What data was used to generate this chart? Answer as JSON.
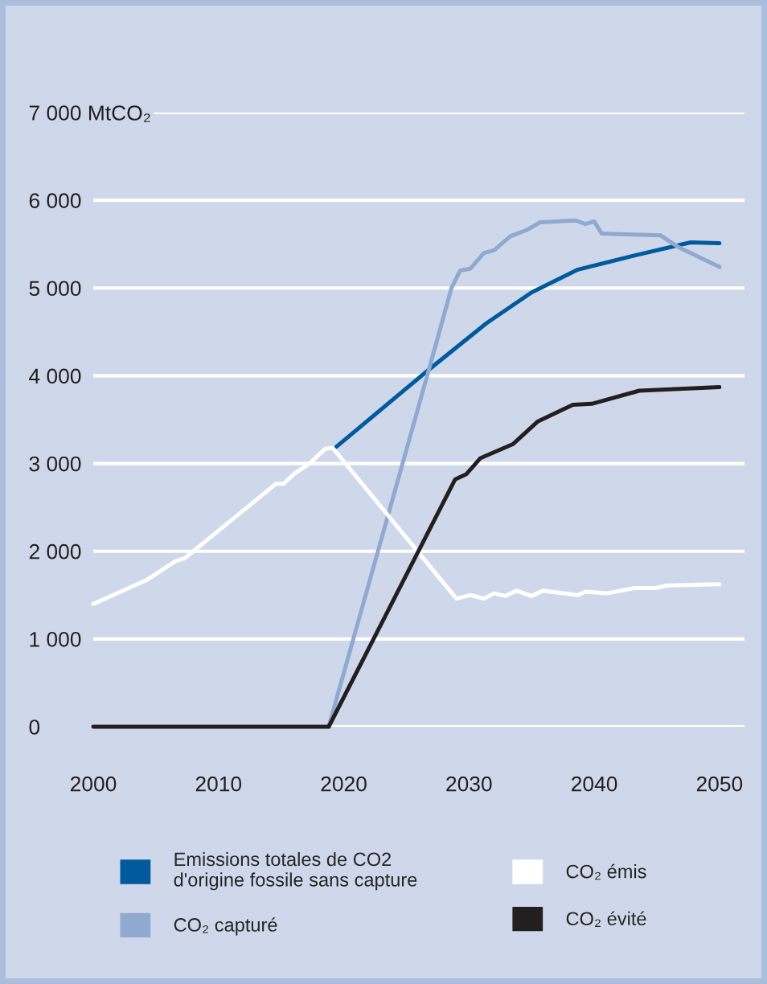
{
  "chart_data": {
    "type": "line",
    "xlim": [
      2000,
      2052
    ],
    "xticks": [
      2000,
      2010,
      2020,
      2030,
      2040,
      2050
    ],
    "ylim": [
      0,
      7000
    ],
    "yticks": [
      0,
      {
        "value": 1000,
        "label": "1 000"
      },
      {
        "value": 2000,
        "label": "2 000"
      },
      {
        "value": 3000,
        "label": "3 000"
      },
      {
        "value": 4000,
        "label": "4 000"
      },
      {
        "value": 5000,
        "label": "5 000"
      },
      {
        "value": 6000,
        "label": "6 000"
      },
      {
        "value": 7000,
        "label": "7 000 MtCO₂"
      }
    ],
    "grid": "y",
    "legend": "bottom",
    "series": [
      {
        "name": "Emissions totales de CO2\nd'origine fossile sans capture",
        "color": "#005a9c",
        "x": [
          2019.4,
          2026.8,
          2031.4,
          2035,
          2038.7,
          2043.2,
          2047.7,
          2050
        ],
        "values": [
          3190,
          4070,
          4600,
          4950,
          5210,
          5370,
          5520,
          5510
        ]
      },
      {
        "name": "CO₂ capturé",
        "color": "#8fa9d0",
        "x": [
          2018.8,
          2026.8,
          2028.6,
          2029.3,
          2030.1,
          2031.2,
          2032,
          2033.3,
          2034.6,
          2035.7,
          2038.5,
          2039.3,
          2040,
          2040.6,
          2045.3,
          2046.8,
          2050
        ],
        "values": [
          0,
          4070,
          5000,
          5200,
          5220,
          5400,
          5430,
          5590,
          5660,
          5750,
          5770,
          5730,
          5760,
          5620,
          5600,
          5460,
          5240
        ]
      },
      {
        "name": "CO₂ émis",
        "color": "#ffffff",
        "x": [
          2000,
          2004.3,
          2006.6,
          2007.3,
          2014.6,
          2015.2,
          2016.1,
          2017.2,
          2018.5,
          2019.1,
          2029,
          2030.1,
          2031.2,
          2032,
          2032.9,
          2033.8,
          2035,
          2035.9,
          2038.7,
          2039.3,
          2041,
          2043.2,
          2044.9,
          2045.8,
          2050
        ],
        "values": [
          1400,
          1675,
          1890,
          1920,
          2770,
          2770,
          2890,
          2990,
          3165,
          3180,
          1460,
          1500,
          1460,
          1520,
          1490,
          1550,
          1490,
          1550,
          1500,
          1540,
          1520,
          1580,
          1580,
          1610,
          1625
        ]
      },
      {
        "name": "CO₂ évité",
        "color": "#231f20",
        "x": [
          2000,
          2018.8,
          2028.9,
          2029.8,
          2030.9,
          2033.5,
          2035.5,
          2038.3,
          2039.8,
          2043.6,
          2050
        ],
        "values": [
          0,
          0,
          2820,
          2880,
          3060,
          3220,
          3480,
          3670,
          3680,
          3830,
          3870
        ]
      }
    ]
  }
}
